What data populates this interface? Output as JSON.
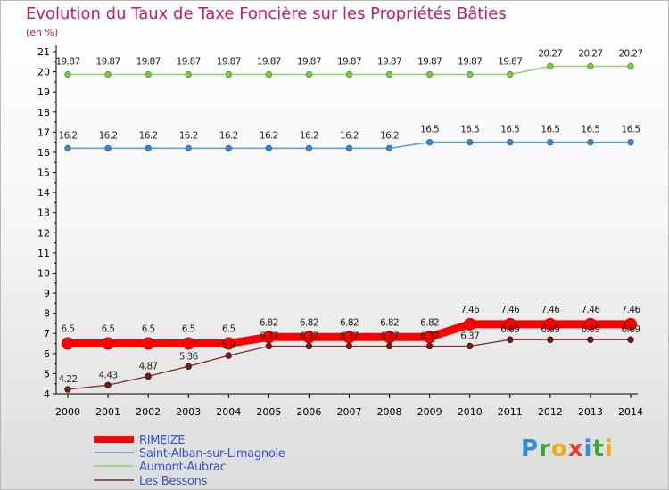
{
  "header": {
    "title": "Evolution du Taux de Taxe Foncière sur les Propriétés Bâties",
    "subtitle": "(en %)"
  },
  "logo": {
    "text": "Proxiti"
  },
  "chart_data": {
    "type": "line",
    "title": "Evolution du Taux de Taxe Foncière sur les Propriétés Bâties",
    "ylabel": "(en %)",
    "ylim": [
      4,
      21
    ],
    "grid": false,
    "legend_position": "bottom-left",
    "x": [
      2000,
      2001,
      2002,
      2003,
      2004,
      2005,
      2006,
      2007,
      2008,
      2009,
      2010,
      2011,
      2012,
      2013,
      2014
    ],
    "y_ticks": [
      4,
      5,
      6,
      7,
      8,
      9,
      10,
      11,
      12,
      13,
      14,
      15,
      16,
      17,
      18,
      19,
      20,
      21
    ],
    "series": [
      {
        "name": "RIMEIZE",
        "color": "#ff0000",
        "values": [
          6.5,
          6.5,
          6.5,
          6.5,
          6.5,
          6.82,
          6.82,
          6.82,
          6.82,
          6.82,
          7.46,
          7.46,
          7.46,
          7.46,
          7.46
        ]
      },
      {
        "name": "Saint-Alban-sur-Limagnole",
        "color": "#5b9bd5",
        "values": [
          16.2,
          16.2,
          16.2,
          16.2,
          16.2,
          16.2,
          16.2,
          16.2,
          16.2,
          16.5,
          16.5,
          16.5,
          16.5,
          16.5,
          16.5
        ]
      },
      {
        "name": "Aumont-Aubrac",
        "color": "#8fd16a",
        "values": [
          19.87,
          19.87,
          19.87,
          19.87,
          19.87,
          19.87,
          19.87,
          19.87,
          19.87,
          19.87,
          19.87,
          19.87,
          20.27,
          20.27,
          20.27
        ]
      },
      {
        "name": "Les Bessons",
        "color": "#7b2a2a",
        "values": [
          4.22,
          4.43,
          4.87,
          5.36,
          5.9,
          6.37,
          6.37,
          6.37,
          6.37,
          6.37,
          6.37,
          6.69,
          6.69,
          6.69,
          6.69
        ],
        "labels": [
          "4.22",
          "4.43",
          "4.87",
          "5.36",
          "5.9",
          "6.37",
          "6.37",
          "6.37",
          "6.37",
          "6.37",
          "6.37",
          "6.69",
          "6.69",
          "6.69",
          "6.69"
        ]
      }
    ]
  }
}
